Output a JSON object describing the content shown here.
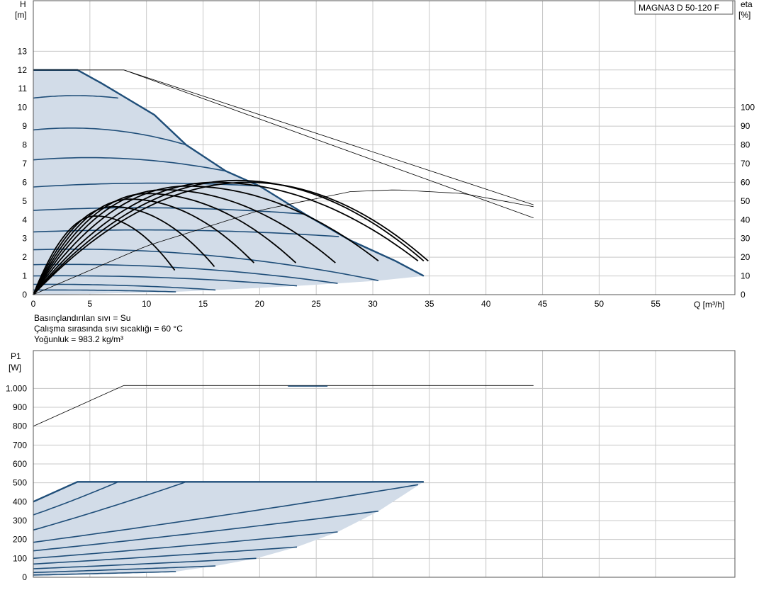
{
  "model": "MAGNA3 D 50-120 F",
  "conditions": [
    "Basınçlandırılan sıvı = Su",
    "Çalışma sırasında sıvı sıcaklığı = 60 °C",
    "Yoğunluk = 983.2 kg/m³"
  ],
  "colors": {
    "grid": "#c8c8c8",
    "area_fill": "#d2dce8",
    "curve_blue": "#1f4e79",
    "eta": "#000000",
    "thin": "#000000"
  },
  "chart_data": [
    {
      "type": "line",
      "name": "head-chart",
      "xlabel": "Q [m³/h]",
      "ylabel_top": "H",
      "ylabel_unit": "[m]",
      "y2label_top": "eta",
      "y2label_unit": "[%]",
      "xlim": [
        0,
        62
      ],
      "ylim": [
        0,
        15.7
      ],
      "y2lim": [
        0,
        157
      ],
      "x_ticks": [
        0,
        5,
        10,
        15,
        20,
        25,
        30,
        35,
        40,
        45,
        50,
        55
      ],
      "y_ticks": [
        0,
        1,
        2,
        3,
        4,
        5,
        6,
        7,
        8,
        9,
        10,
        11,
        12,
        13
      ],
      "y2_ticks": [
        0,
        10,
        20,
        30,
        40,
        50,
        60,
        70,
        80,
        90,
        100
      ],
      "grid": true,
      "max_curve": [
        [
          0,
          12
        ],
        [
          3.9,
          12
        ],
        [
          6,
          11.3
        ],
        [
          8.5,
          10.4
        ],
        [
          10.7,
          9.6
        ],
        [
          13.5,
          8.0
        ],
        [
          17,
          6.6
        ],
        [
          20,
          5.8
        ],
        [
          24,
          4.3
        ],
        [
          28,
          2.9
        ],
        [
          32,
          1.8
        ],
        [
          34.5,
          1.0
        ]
      ],
      "min_boundary": [
        [
          0,
          0
        ],
        [
          5,
          0.04
        ],
        [
          12.6,
          0.15
        ],
        [
          16.1,
          0.25
        ],
        [
          19.7,
          0.35
        ],
        [
          23.3,
          0.47
        ],
        [
          26.9,
          0.6
        ],
        [
          30.5,
          0.75
        ],
        [
          34.5,
          1.0
        ]
      ],
      "speed_curves": [
        {
          "h0": 10.5,
          "q_end": 7.5,
          "h_end": 10.5
        },
        {
          "h0": 8.8,
          "q_end": 13.5,
          "h_end": 8.0
        },
        {
          "h0": 7.2,
          "q_end": 17.0,
          "h_end": 6.6
        },
        {
          "h0": 5.75,
          "q_end": 20.0,
          "h_end": 5.8
        },
        {
          "h0": 4.5,
          "q_end": 24.0,
          "h_end": 4.3
        },
        {
          "h0": 3.35,
          "q_end": 27.0,
          "h_end": 3.1
        },
        {
          "h0": 2.4,
          "q_end": 30.5,
          "h_end": 0.75
        },
        {
          "h0": 1.6,
          "q_end": 26.9,
          "h_end": 0.6
        },
        {
          "h0": 1.0,
          "q_end": 23.3,
          "h_end": 0.47
        },
        {
          "h0": 0.55,
          "q_end": 16.1,
          "h_end": 0.25
        },
        {
          "h0": 0.25,
          "q_end": 12.6,
          "h_end": 0.15
        }
      ],
      "eta_curves": [
        {
          "q_end": 12.5,
          "eta_end": 13,
          "peak_q": 5.5,
          "peak_eta": 42
        },
        {
          "q_end": 16.0,
          "eta_end": 15,
          "peak_q": 7.0,
          "peak_eta": 47
        },
        {
          "q_end": 19.5,
          "eta_end": 17,
          "peak_q": 8.5,
          "peak_eta": 51
        },
        {
          "q_end": 23.2,
          "eta_end": 17,
          "peak_q": 10.0,
          "peak_eta": 54
        },
        {
          "q_end": 26.7,
          "eta_end": 17,
          "peak_q": 11.5,
          "peak_eta": 56
        },
        {
          "q_end": 30.5,
          "eta_end": 18,
          "peak_q": 13.5,
          "peak_eta": 58
        },
        {
          "q_end": 34.0,
          "eta_end": 18,
          "peak_q": 16.0,
          "peak_eta": 60
        },
        {
          "q_end": 34.5,
          "eta_end": 18,
          "peak_q": 18.0,
          "peak_eta": 61
        },
        {
          "q_end": 34.9,
          "eta_end": 18,
          "peak_q": 19.0,
          "peak_eta": 60
        }
      ],
      "system_thin_line": [
        [
          0,
          12
        ],
        [
          8,
          12
        ],
        [
          44.2,
          4.1
        ]
      ],
      "system_thin_line2": [
        [
          8,
          12
        ],
        [
          44.2,
          4.8
        ]
      ],
      "eta_overall_thin": [
        [
          0,
          0
        ],
        [
          10,
          26
        ],
        [
          20,
          45
        ],
        [
          28,
          55
        ],
        [
          32,
          56
        ],
        [
          38,
          54
        ],
        [
          44.2,
          47
        ]
      ]
    },
    {
      "type": "line",
      "name": "power-chart",
      "xlabel": "",
      "ylabel_top": "P1",
      "ylabel_unit": "[W]",
      "xlim": [
        0,
        62
      ],
      "ylim": [
        0,
        1200
      ],
      "y_ticks": [
        0,
        100,
        200,
        300,
        400,
        500,
        600,
        700,
        800,
        900,
        1000
      ],
      "y_tick_labels": [
        "0",
        "100",
        "200",
        "300",
        "400",
        "500",
        "600",
        "700",
        "800",
        "900",
        "1.000"
      ],
      "grid": true,
      "max_curve": [
        [
          0,
          400
        ],
        [
          3.9,
          505
        ],
        [
          34.5,
          505
        ]
      ],
      "min_boundary": [
        [
          0,
          5
        ],
        [
          12.6,
          30
        ],
        [
          16.1,
          60
        ],
        [
          19.7,
          100
        ],
        [
          23.3,
          160
        ],
        [
          26.9,
          240
        ],
        [
          30.5,
          350
        ],
        [
          34.5,
          505
        ]
      ],
      "power_curves": [
        {
          "p0": 330,
          "q_end": 7.5,
          "p_end": 505
        },
        {
          "p0": 250,
          "q_end": 13.5,
          "p_end": 505
        },
        {
          "p0": 185,
          "q_end": 34.0,
          "p_end": 490
        },
        {
          "p0": 140,
          "q_end": 30.5,
          "p_end": 350
        },
        {
          "p0": 100,
          "q_end": 26.9,
          "p_end": 240
        },
        {
          "p0": 70,
          "q_end": 23.3,
          "p_end": 160
        },
        {
          "p0": 45,
          "q_end": 19.7,
          "p_end": 100
        },
        {
          "p0": 25,
          "q_end": 16.1,
          "p_end": 60
        },
        {
          "p0": 12,
          "q_end": 12.6,
          "p_end": 30
        }
      ],
      "system_thin_line": [
        [
          0,
          800
        ],
        [
          8,
          1015
        ],
        [
          44.2,
          1015
        ]
      ]
    }
  ]
}
